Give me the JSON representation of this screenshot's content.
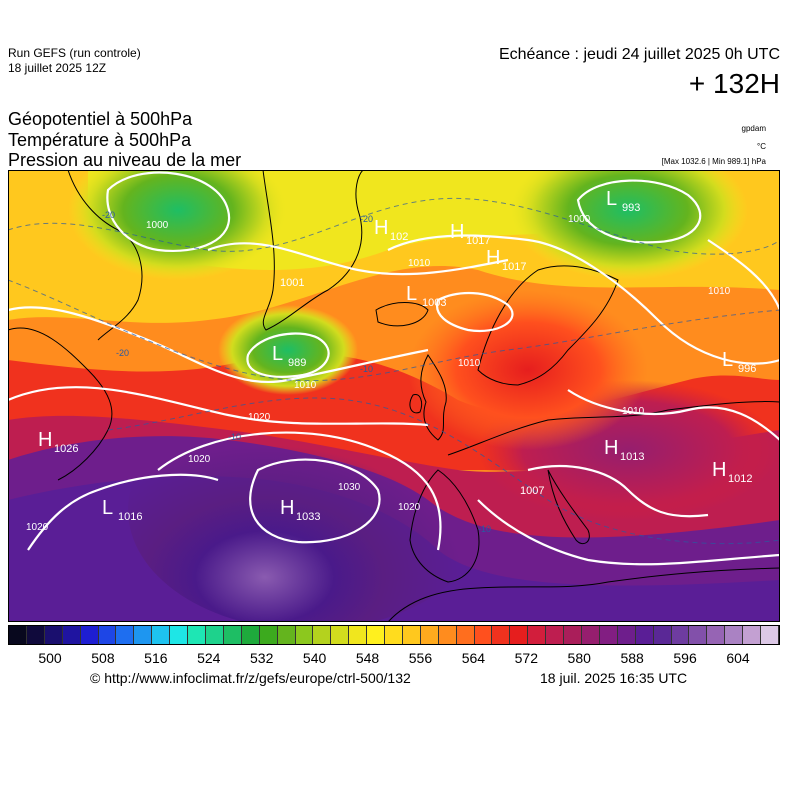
{
  "header": {
    "run_title": "Run GEFS (run controle)",
    "run_date": "18 juillet 2025 12Z",
    "valid_time": "Echéance : jeudi 24 juillet 2025 0h UTC",
    "lead_time": "+ 132H"
  },
  "fields": {
    "geopotential": "Géopotentiel à 500hPa",
    "temperature": "Température à 500hPa",
    "pressure": "Pression au niveau de la mer"
  },
  "units": {
    "geopotential": "gpdam",
    "temperature": "°C",
    "pressure": "[Max 1032.6 | Min 989.1] hPa"
  },
  "pressure_centers": [
    {
      "type": "L",
      "value": "989"
    },
    {
      "type": "L",
      "value": "993"
    },
    {
      "type": "L",
      "value": "1001"
    },
    {
      "type": "L",
      "value": "1003"
    },
    {
      "type": "L",
      "value": "996"
    },
    {
      "type": "L",
      "value": "1016"
    },
    {
      "type": "L",
      "value": "1007"
    },
    {
      "type": "H",
      "value": "1033"
    },
    {
      "type": "H",
      "value": "1026"
    },
    {
      "type": "H",
      "value": "1017"
    },
    {
      "type": "H",
      "value": "1017"
    },
    {
      "type": "H",
      "value": "1013"
    },
    {
      "type": "H",
      "value": "1012"
    },
    {
      "type": "H",
      "value": "102"
    }
  ],
  "isobar_labels": [
    "1000",
    "1010",
    "1010",
    "1020",
    "1020",
    "1020",
    "1030",
    "1010",
    "1000",
    "1010",
    "1010",
    "1020"
  ],
  "temperature_labels": [
    "-20",
    "-10",
    "-10",
    "-10",
    "-20",
    "-20"
  ],
  "colorbar": {
    "colors": [
      "#08081e",
      "#100a3c",
      "#1a0f6e",
      "#1f14a0",
      "#1e1ed2",
      "#1e46e6",
      "#1e6ef0",
      "#1e96f0",
      "#1ec3f0",
      "#1ee6e6",
      "#1ee6b4",
      "#1ed28c",
      "#1ebe64",
      "#1eaa3c",
      "#3caa1e",
      "#64b41e",
      "#8cc81e",
      "#b4d21e",
      "#d2dc1e",
      "#f0e61e",
      "#fff01e",
      "#ffdc1e",
      "#ffc81e",
      "#ffaa1e",
      "#ff8c1e",
      "#ff6e1e",
      "#ff501e",
      "#f0321e",
      "#e61e1e",
      "#d21e3c",
      "#be1e50",
      "#aa1e5a",
      "#961e6e",
      "#821e82",
      "#6e1e8c",
      "#5a1e96",
      "#5a2896",
      "#6e3ca0",
      "#8250aa",
      "#9664b4",
      "#aa82c3",
      "#c3a0d2",
      "#dcc8e6"
    ],
    "ticks": [
      "500",
      "508",
      "516",
      "524",
      "532",
      "540",
      "548",
      "556",
      "564",
      "572",
      "580",
      "588",
      "596",
      "604"
    ]
  },
  "footer": {
    "credit": "© http://www.infoclimat.fr/z/gefs/europe/ctrl-500/132",
    "timestamp": "18 juil. 2025 16:35 UTC"
  }
}
